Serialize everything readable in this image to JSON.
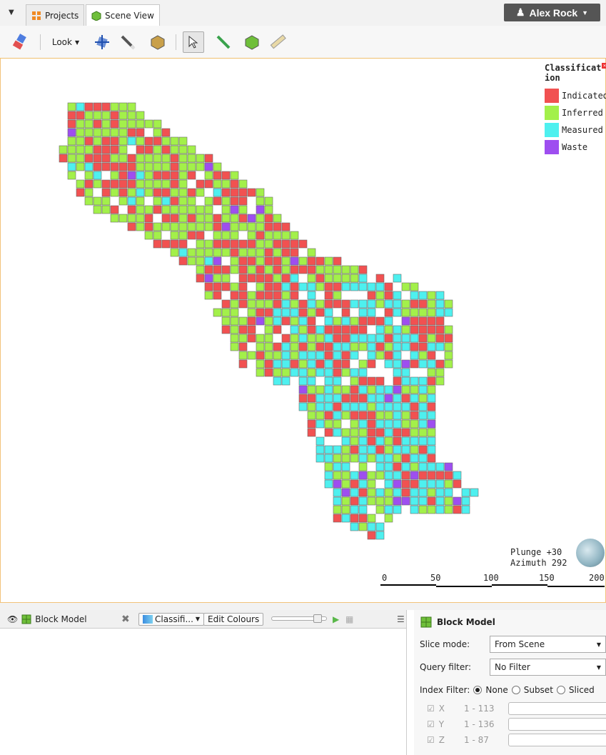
{
  "tabs": [
    {
      "label": "Projects",
      "icon": "projects-icon"
    },
    {
      "label": "Scene View",
      "icon": "scene-cube-icon"
    }
  ],
  "user": {
    "name": "Alex Rock"
  },
  "toolbar": {
    "look_label": "Look"
  },
  "legend": {
    "title": "Classification",
    "items": [
      {
        "label": "Indicated",
        "color": "#f15151"
      },
      {
        "label": "Inferred",
        "color": "#a3f04a"
      },
      {
        "label": "Measured",
        "color": "#4ef0ef"
      },
      {
        "label": "Waste",
        "color": "#9e4ef0"
      }
    ]
  },
  "orientation": {
    "plunge": "Plunge +30",
    "azimuth": "Azimuth 292"
  },
  "scale": {
    "ticks": [
      "0",
      "50",
      "100",
      "150",
      "200"
    ]
  },
  "bottom_left": {
    "title": "Block Model",
    "colour_dropdown": "Classifi...",
    "edit_colours": "Edit Colours"
  },
  "bottom_right": {
    "title": "Block Model",
    "slice_mode_label": "Slice mode:",
    "slice_mode_value": "From Scene",
    "query_filter_label": "Query filter:",
    "query_filter_value": "No Filter",
    "index_filter_label": "Index Filter:",
    "index_options": [
      "None",
      "Subset",
      "Sliced"
    ],
    "index_selected": "None",
    "indices": [
      {
        "axis": "X",
        "range": "1 - 113"
      },
      {
        "axis": "Y",
        "range": "1 - 136"
      },
      {
        "axis": "Z",
        "range": "1 - 87"
      }
    ]
  }
}
